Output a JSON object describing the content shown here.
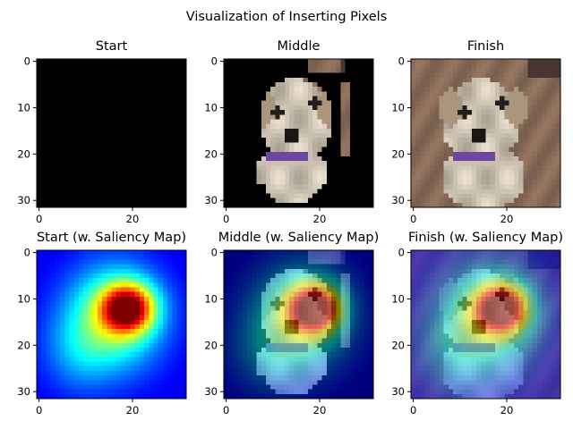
{
  "chart_data": {
    "type": "heatmap",
    "title": "Visualization of Inserting Pixels",
    "panels": [
      {
        "title": "Start",
        "content": "image",
        "stage": "start",
        "overlay": false
      },
      {
        "title": "Middle",
        "content": "image",
        "stage": "middle",
        "overlay": false
      },
      {
        "title": "Finish",
        "content": "image",
        "stage": "finish",
        "overlay": false
      },
      {
        "title": "Start (w. Saliency Map)",
        "content": "saliency",
        "stage": "start",
        "overlay": true
      },
      {
        "title": "Middle (w. Saliency Map)",
        "content": "saliency",
        "stage": "middle",
        "overlay": true
      },
      {
        "title": "Finish (w. Saliency Map)",
        "content": "saliency",
        "stage": "finish",
        "overlay": true
      }
    ],
    "image_size": [
      32,
      32
    ],
    "xticks": [
      0,
      20
    ],
    "yticks": [
      0,
      10,
      20,
      30
    ],
    "xlim": [
      -0.5,
      31.5
    ],
    "ylim": [
      31.5,
      -0.5
    ],
    "colormap": "jet",
    "saliency_peak": {
      "x": 19,
      "y": 12
    }
  }
}
